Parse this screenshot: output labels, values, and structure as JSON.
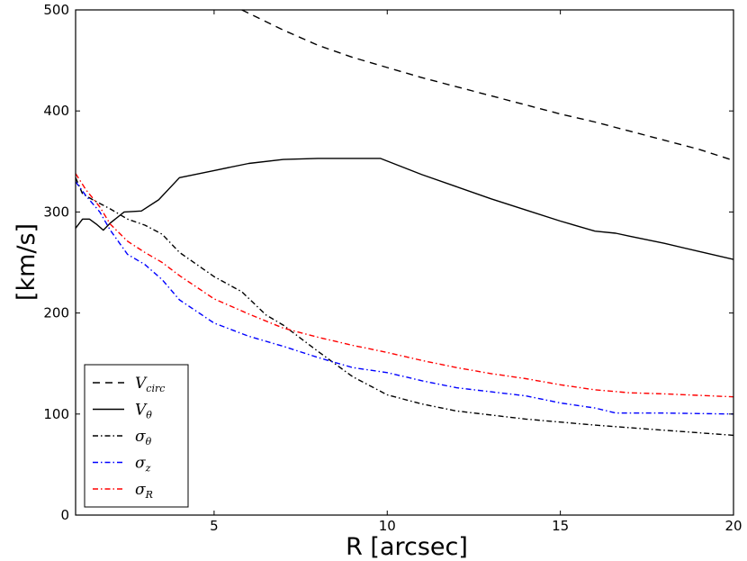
{
  "chart_data": {
    "type": "line",
    "title": "",
    "xlabel": "R [arcsec]",
    "ylabel": "[km/s]",
    "xlim": [
      1,
      20
    ],
    "ylim": [
      0,
      500
    ],
    "xticks": [
      5,
      10,
      15,
      20
    ],
    "yticks": [
      0,
      100,
      200,
      300,
      400,
      500
    ],
    "xtick_labels": [
      "5",
      "10",
      "15",
      "20"
    ],
    "ytick_labels": [
      "0",
      "100",
      "200",
      "300",
      "400",
      "500"
    ],
    "grid": false,
    "legend_position": "lower-left",
    "series": [
      {
        "name": "V_circ",
        "legend": {
          "main": "V",
          "sub": "circ"
        },
        "color": "#000000",
        "dash": "8,6",
        "x": [
          5.8,
          7,
          8,
          9,
          10,
          11,
          12,
          13,
          14,
          15,
          16,
          17,
          18,
          19,
          20
        ],
        "y": [
          500,
          480,
          465,
          453,
          443,
          433,
          424,
          415,
          406,
          397,
          389,
          380,
          371,
          362,
          351
        ]
      },
      {
        "name": "V_theta",
        "legend": {
          "main": "V",
          "sub": "θ"
        },
        "color": "#000000",
        "dash": "",
        "x": [
          1.0,
          1.2,
          1.4,
          1.6,
          1.8,
          2.0,
          2.4,
          2.9,
          3.4,
          4.0,
          5.0,
          6.0,
          7.0,
          8.0,
          9.0,
          9.8,
          11,
          12,
          13,
          14,
          15,
          16,
          16.6,
          17,
          18,
          19,
          20
        ],
        "y": [
          284,
          293,
          293,
          288,
          282,
          289,
          300,
          301,
          312,
          334,
          341,
          348,
          352,
          353,
          353,
          353,
          337,
          325,
          313,
          302,
          291,
          281,
          279,
          276,
          269,
          261,
          253
        ]
      },
      {
        "name": "sigma_theta",
        "legend": {
          "main": "σ",
          "sub": "θ"
        },
        "color": "#000000",
        "dash": "6,3,1.5,3",
        "x": [
          1.0,
          1.2,
          1.5,
          2.0,
          2.5,
          3.0,
          3.5,
          4.0,
          5.0,
          5.8,
          6.5,
          7.0,
          8.0,
          9.0,
          10.0,
          11,
          12,
          14,
          16,
          18,
          20
        ],
        "y": [
          334,
          318,
          312,
          303,
          293,
          287,
          278,
          260,
          236,
          221,
          198,
          188,
          162,
          137,
          119,
          110,
          103,
          95,
          89,
          84,
          79
        ]
      },
      {
        "name": "sigma_z",
        "legend": {
          "main": "σ",
          "sub": "z"
        },
        "color": "#0000ff",
        "dash": "6,3,1.5,3",
        "x": [
          1.0,
          1.3,
          1.7,
          2.0,
          2.5,
          3.0,
          3.5,
          4.0,
          5.0,
          6.0,
          7.0,
          8.0,
          9.0,
          10.0,
          11,
          12,
          13,
          14,
          15,
          16,
          16.6,
          18,
          20
        ],
        "y": [
          330,
          316,
          300,
          282,
          258,
          248,
          233,
          213,
          190,
          177,
          167,
          156,
          146,
          141,
          133,
          126,
          122,
          118,
          111,
          106,
          101,
          101,
          100
        ]
      },
      {
        "name": "sigma_R",
        "legend": {
          "main": "σ",
          "sub": "R"
        },
        "color": "#ff0000",
        "dash": "6,3,1.5,3",
        "x": [
          1.0,
          1.3,
          1.7,
          2.0,
          2.5,
          3.0,
          3.5,
          4.0,
          5.0,
          6.0,
          7.0,
          8.0,
          9.0,
          10.0,
          11,
          12,
          13,
          14,
          15,
          16,
          17,
          18,
          20
        ],
        "y": [
          338,
          322,
          305,
          288,
          271,
          260,
          250,
          237,
          214,
          199,
          185,
          176,
          168,
          161,
          153,
          146,
          140,
          135,
          129,
          124,
          121,
          120,
          117
        ]
      }
    ]
  }
}
